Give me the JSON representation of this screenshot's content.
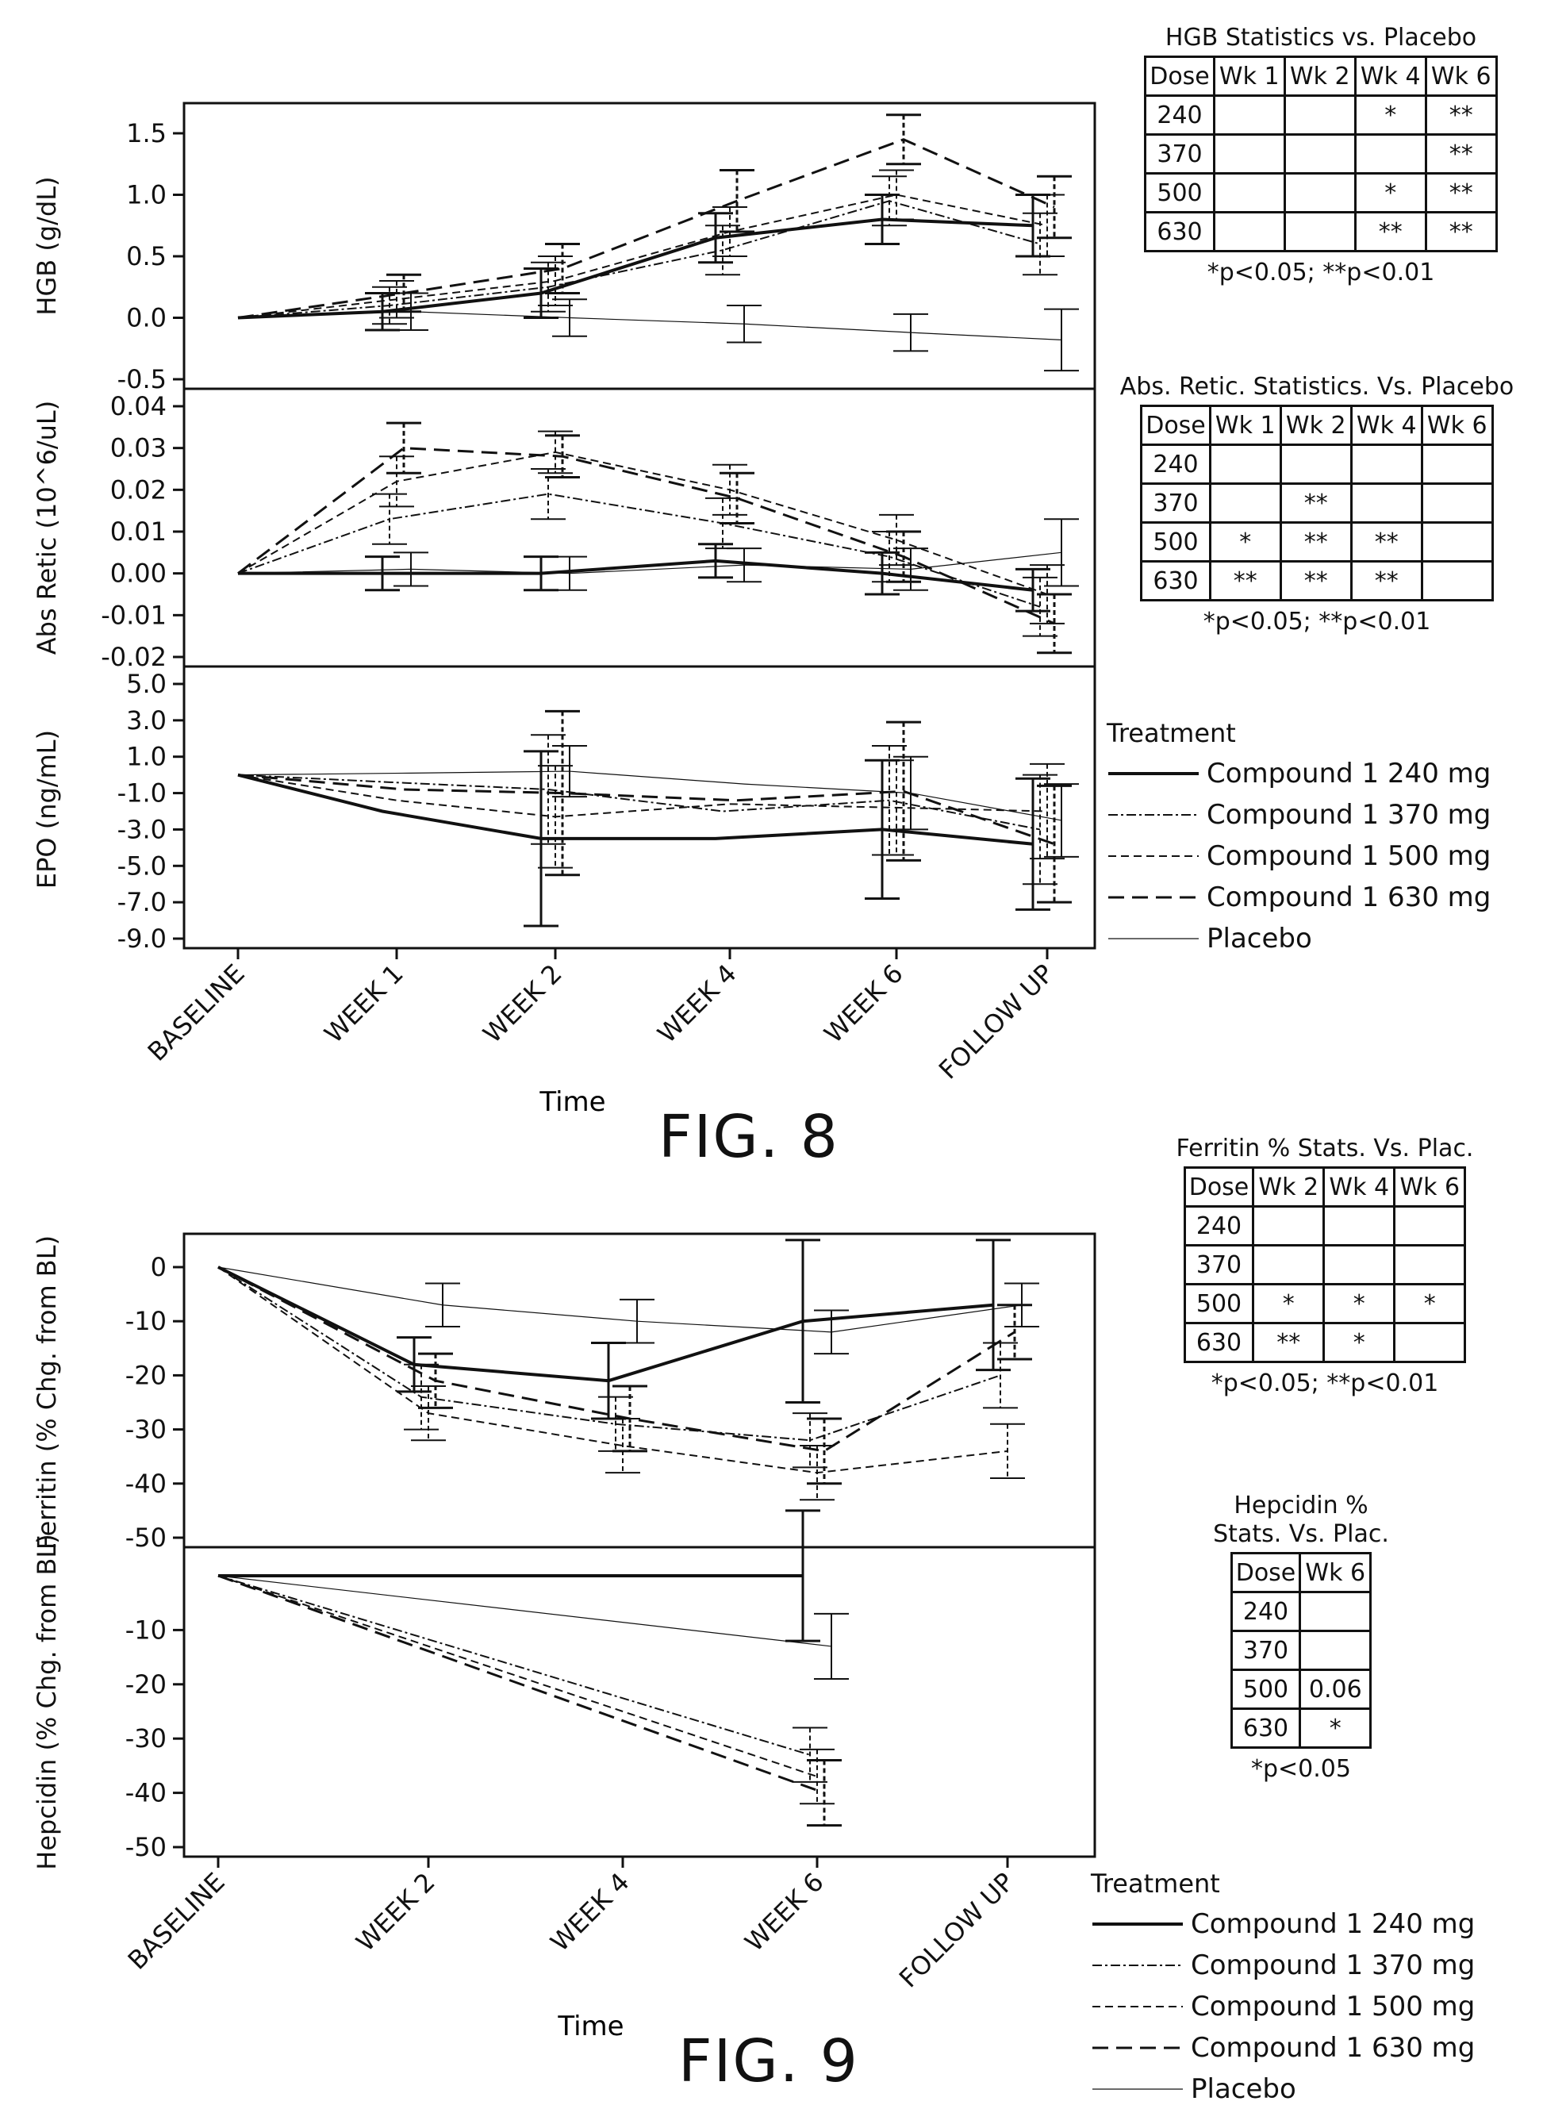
{
  "chart_data": [
    {
      "type": "line",
      "figure": "FIG. 8",
      "panel": "HGB",
      "ylabel": "HGB (g/dL)",
      "xlabel": "Time",
      "categories": [
        "BASELINE",
        "WEEK 1",
        "WEEK 2",
        "WEEK 4",
        "WEEK 6",
        "FOLLOW UP"
      ],
      "ylim": [
        -0.5,
        1.5
      ],
      "yticks": [
        "1.5",
        "1.0",
        "0.5",
        "0.0",
        "-0.5"
      ],
      "ytick_values": [
        1.5,
        1.0,
        0.5,
        0.0,
        -0.5
      ],
      "series": [
        {
          "name": "Compound 1 240 mg",
          "values": [
            0.0,
            0.05,
            0.2,
            0.65,
            0.8,
            0.75
          ],
          "err": [
            0,
            0.15,
            0.2,
            0.2,
            0.2,
            0.25
          ]
        },
        {
          "name": "Compound 1 370 mg",
          "values": [
            0.0,
            0.1,
            0.25,
            0.55,
            0.95,
            0.6
          ],
          "err": [
            0,
            0.15,
            0.2,
            0.2,
            0.2,
            0.25
          ]
        },
        {
          "name": "Compound 1 500 mg",
          "values": [
            0.0,
            0.15,
            0.3,
            0.7,
            1.0,
            0.75
          ],
          "err": [
            0,
            0.15,
            0.2,
            0.2,
            0.2,
            0.25
          ]
        },
        {
          "name": "Compound 1 630 mg",
          "values": [
            0.0,
            0.2,
            0.4,
            0.95,
            1.45,
            0.9
          ],
          "err": [
            0,
            0.15,
            0.2,
            0.25,
            0.2,
            0.25
          ]
        },
        {
          "name": "Placebo",
          "values": [
            0.0,
            0.05,
            0.0,
            -0.05,
            -0.12,
            -0.18
          ],
          "err": [
            0,
            0.15,
            0.15,
            0.15,
            0.15,
            0.25
          ]
        }
      ]
    },
    {
      "type": "line",
      "figure": "FIG. 8",
      "panel": "Abs Retic",
      "ylabel": "Abs Retic (10^6/uL)",
      "xlabel": "Time",
      "categories": [
        "BASELINE",
        "WEEK 1",
        "WEEK 2",
        "WEEK 4",
        "WEEK 6",
        "FOLLOW UP"
      ],
      "ylim": [
        -0.02,
        0.04
      ],
      "yticks": [
        "0.04",
        "0.03",
        "0.02",
        "0.01",
        "0.00",
        "-0.01",
        "-0.02"
      ],
      "ytick_values": [
        0.04,
        0.03,
        0.02,
        0.01,
        0.0,
        -0.01,
        -0.02
      ],
      "series": [
        {
          "name": "Compound 1 240 mg",
          "values": [
            0.0,
            0.0,
            0.0,
            0.003,
            0.0,
            -0.004
          ],
          "err": [
            0,
            0.004,
            0.004,
            0.004,
            0.005,
            0.005
          ]
        },
        {
          "name": "Compound 1 370 mg",
          "values": [
            0.0,
            0.013,
            0.019,
            0.012,
            0.004,
            -0.008
          ],
          "err": [
            0,
            0.006,
            0.006,
            0.006,
            0.006,
            0.007
          ]
        },
        {
          "name": "Compound 1 500 mg",
          "values": [
            0.0,
            0.022,
            0.029,
            0.02,
            0.008,
            -0.005
          ],
          "err": [
            0,
            0.006,
            0.005,
            0.006,
            0.006,
            0.007
          ]
        },
        {
          "name": "Compound 1 630 mg",
          "values": [
            0.0,
            0.03,
            0.028,
            0.018,
            0.004,
            -0.012
          ],
          "err": [
            0,
            0.006,
            0.005,
            0.006,
            0.006,
            0.007
          ]
        },
        {
          "name": "Placebo",
          "values": [
            0.0,
            0.001,
            0.0,
            0.002,
            0.001,
            0.005
          ],
          "err": [
            0,
            0.004,
            0.004,
            0.004,
            0.005,
            0.008
          ]
        }
      ]
    },
    {
      "type": "line",
      "figure": "FIG. 8",
      "panel": "EPO",
      "ylabel": "EPO (ng/mL)",
      "xlabel": "Time",
      "categories": [
        "BASELINE",
        "WEEK 1",
        "WEEK 2",
        "WEEK 4",
        "WEEK 6",
        "FOLLOW UP"
      ],
      "ylim": [
        -9.0,
        5.0
      ],
      "yticks": [
        "5.0",
        "3.0",
        "1.0",
        "-1.0",
        "-3.0",
        "-5.0",
        "-7.0",
        "-9.0"
      ],
      "ytick_values": [
        5.0,
        3.0,
        1.0,
        -1.0,
        -3.0,
        -5.0,
        -7.0,
        -9.0
      ],
      "series": [
        {
          "name": "Compound 1 240 mg",
          "values": [
            0.0,
            -2.0,
            -3.5,
            -3.5,
            -3.0,
            -3.8
          ],
          "err": [
            0,
            0,
            4.8,
            0,
            3.8,
            3.6
          ]
        },
        {
          "name": "Compound 1 370 mg",
          "values": [
            0.0,
            -0.4,
            -0.8,
            -2.0,
            -1.4,
            -3.0
          ],
          "err": [
            0,
            0,
            3.0,
            0,
            3.0,
            3.0
          ]
        },
        {
          "name": "Compound 1 500 mg",
          "values": [
            0.0,
            -1.4,
            -2.3,
            -1.6,
            -1.8,
            -2.0
          ],
          "err": [
            0,
            0,
            2.8,
            0,
            2.6,
            2.6
          ]
        },
        {
          "name": "Compound 1 630 mg",
          "values": [
            0.0,
            -0.8,
            -1.0,
            -1.4,
            -0.9,
            -3.8
          ],
          "err": [
            0,
            0,
            4.5,
            0,
            3.8,
            3.2
          ]
        },
        {
          "name": "Placebo",
          "values": [
            0.0,
            0.1,
            0.2,
            -0.5,
            -1.0,
            -2.5
          ],
          "err": [
            0,
            0,
            1.4,
            0,
            2.0,
            2.0
          ]
        }
      ]
    },
    {
      "type": "line",
      "figure": "FIG. 9",
      "panel": "Ferritin",
      "ylabel": "Ferritin (% Chg. from BL)",
      "xlabel": "Time",
      "categories": [
        "BASELINE",
        "WEEK 2",
        "WEEK 4",
        "WEEK 6",
        "FOLLOW UP"
      ],
      "ylim": [
        -50,
        0
      ],
      "yticks": [
        "0",
        "-10",
        "-20",
        "-30",
        "-40",
        "-50"
      ],
      "ytick_values": [
        0,
        -10,
        -20,
        -30,
        -40,
        -50
      ],
      "series": [
        {
          "name": "Compound 1 240 mg",
          "values": [
            0,
            -18,
            -21,
            -10,
            -7
          ],
          "err": [
            0,
            5,
            7,
            15,
            12
          ]
        },
        {
          "name": "Compound 1 370 mg",
          "values": [
            0,
            -24,
            -29,
            -32,
            -20
          ],
          "err": [
            0,
            6,
            5,
            5,
            6
          ]
        },
        {
          "name": "Compound 1 500 mg",
          "values": [
            0,
            -27,
            -33,
            -38,
            -34
          ],
          "err": [
            0,
            5,
            5,
            5,
            5
          ]
        },
        {
          "name": "Compound 1 630 mg",
          "values": [
            0,
            -21,
            -28,
            -34,
            -12
          ],
          "err": [
            0,
            5,
            6,
            6,
            5
          ]
        },
        {
          "name": "Placebo",
          "values": [
            0,
            -7,
            -10,
            -12,
            -7
          ],
          "err": [
            0,
            4,
            4,
            4,
            4
          ]
        }
      ]
    },
    {
      "type": "line",
      "figure": "FIG. 9",
      "panel": "Hepcidin",
      "ylabel": "Hepcidin (% Chg. from BL)",
      "xlabel": "Time",
      "categories": [
        "BASELINE",
        "WEEK 2",
        "WEEK 4",
        "WEEK 6",
        "FOLLOW UP"
      ],
      "ylim": [
        -50,
        0
      ],
      "yticks": [
        "-10",
        "-20",
        "-30",
        "-40",
        "-50"
      ],
      "ytick_values": [
        -10,
        -20,
        -30,
        -40,
        -50
      ],
      "series": [
        {
          "name": "Compound 1 240 mg",
          "values": [
            0,
            null,
            null,
            0,
            null
          ],
          "err": [
            0,
            0,
            0,
            12,
            0
          ]
        },
        {
          "name": "Compound 1 370 mg",
          "values": [
            0,
            null,
            null,
            -33,
            null
          ],
          "err": [
            0,
            0,
            0,
            5,
            0
          ]
        },
        {
          "name": "Compound 1 500 mg",
          "values": [
            0,
            null,
            null,
            -37,
            null
          ],
          "err": [
            0,
            0,
            0,
            5,
            0
          ]
        },
        {
          "name": "Compound 1 630 mg",
          "values": [
            0,
            null,
            null,
            -40,
            null
          ],
          "err": [
            0,
            0,
            0,
            6,
            0
          ]
        },
        {
          "name": "Placebo",
          "values": [
            0,
            null,
            null,
            -13,
            null
          ],
          "err": [
            0,
            0,
            0,
            6,
            0
          ]
        }
      ]
    }
  ],
  "figures": {
    "fig8_caption": "FIG. 8",
    "fig9_caption": "FIG. 9",
    "xlabel": "Time"
  },
  "stats_tables": {
    "hgb": {
      "title": "HGB Statistics vs. Placebo",
      "header": [
        "Dose",
        "Wk 1",
        "Wk 2",
        "Wk 4",
        "Wk 6"
      ],
      "rows": [
        [
          "240",
          "",
          "",
          "*",
          "**"
        ],
        [
          "370",
          "",
          "",
          "",
          "**"
        ],
        [
          "500",
          "",
          "",
          "*",
          "**"
        ],
        [
          "630",
          "",
          "",
          "**",
          "**"
        ]
      ],
      "footnote": "*p<0.05; **p<0.01"
    },
    "retic": {
      "title": "Abs. Retic. Statistics. Vs. Placebo",
      "header": [
        "Dose",
        "Wk 1",
        "Wk 2",
        "Wk 4",
        "Wk 6"
      ],
      "rows": [
        [
          "240",
          "",
          "",
          "",
          ""
        ],
        [
          "370",
          "",
          "**",
          "",
          ""
        ],
        [
          "500",
          "*",
          "**",
          "**",
          ""
        ],
        [
          "630",
          "**",
          "**",
          "**",
          ""
        ]
      ],
      "footnote": "*p<0.05; **p<0.01"
    },
    "ferritin": {
      "title": "Ferritin % Stats. Vs. Plac.",
      "header": [
        "Dose",
        "Wk 2",
        "Wk 4",
        "Wk 6"
      ],
      "rows": [
        [
          "240",
          "",
          "",
          ""
        ],
        [
          "370",
          "",
          "",
          ""
        ],
        [
          "500",
          "*",
          "*",
          "*"
        ],
        [
          "630",
          "**",
          "*",
          ""
        ]
      ],
      "footnote": "*p<0.05; **p<0.01"
    },
    "hepcidin": {
      "title": "Hepcidin %\nStats. Vs. Plac.",
      "header": [
        "Dose",
        "Wk 6"
      ],
      "rows": [
        [
          "240",
          ""
        ],
        [
          "370",
          ""
        ],
        [
          "500",
          "0.06"
        ],
        [
          "630",
          "*"
        ]
      ],
      "footnote": "*p<0.05"
    }
  },
  "legend": {
    "title": "Treatment",
    "items": [
      {
        "name": "Compound 1 240 mg",
        "dash": "solid",
        "width": 4
      },
      {
        "name": "Compound 1 370 mg",
        "dash": "12 4 3 4",
        "width": 2
      },
      {
        "name": "Compound 1 500 mg",
        "dash": "10 6",
        "width": 2
      },
      {
        "name": "Compound 1 630 mg",
        "dash": "20 10",
        "width": 3
      },
      {
        "name": "Placebo",
        "dash": "solid",
        "width": 1.2
      }
    ]
  },
  "colors": {
    "ink": "#111111",
    "background": "#ffffff"
  }
}
